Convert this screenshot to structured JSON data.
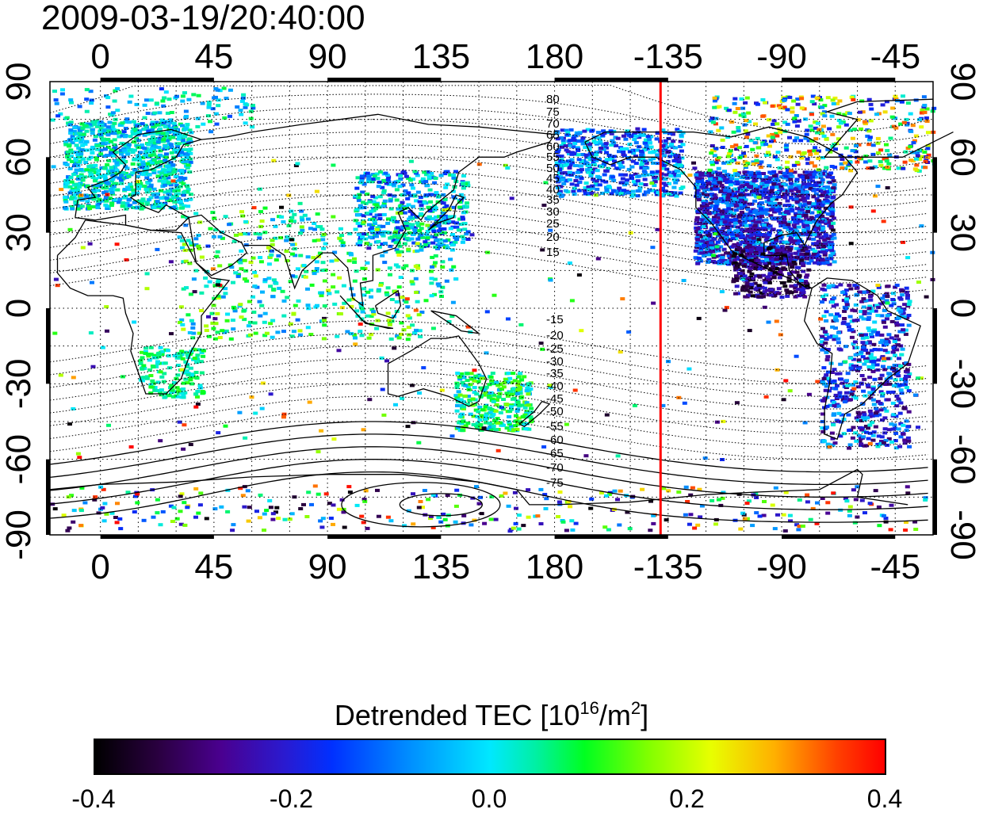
{
  "timestamp": "2009-03-19/20:40:00",
  "map": {
    "x_tick_labels": [
      "0",
      "45",
      "90",
      "135",
      "180",
      "-135",
      "-90",
      "-45"
    ],
    "y_tick_labels_left": [
      "90",
      "60",
      "30",
      "0",
      "-30",
      "-60",
      "-90"
    ],
    "y_tick_labels_right": [
      "90",
      "60",
      "30",
      "0",
      "-30",
      "-60",
      "-90"
    ],
    "lon_range": [
      -20,
      330
    ],
    "lat_range": [
      -90,
      90
    ],
    "terminator_longitude": -138,
    "terminator_color": "#ff0000",
    "north_contour_labels": [
      "80",
      "75",
      "70",
      "65",
      "60",
      "55",
      "50",
      "45",
      "40",
      "35",
      "30",
      "25",
      "20",
      "15"
    ],
    "south_contour_labels": [
      "-15",
      "-20",
      "-25",
      "-30",
      "-35",
      "-40",
      "-45",
      "-50",
      "-55",
      "-60",
      "-65",
      "-70",
      "-75"
    ],
    "grid": true
  },
  "colorbar": {
    "title": "Detrended TEC  [10",
    "title_sup1": "16",
    "title_mid": "/m",
    "title_sup2": "2",
    "title_end": "]",
    "tick_labels": [
      "-0.4",
      "-0.2",
      "0.0",
      "0.2",
      "0.4"
    ],
    "range": [
      -0.4,
      0.4
    ]
  }
}
